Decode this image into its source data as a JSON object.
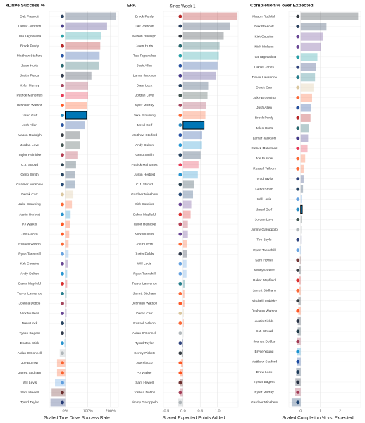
{
  "subtitle": "Since Week 1",
  "highlight": "Jared Goff",
  "player_colors": {
    "Dak Prescott": "#041E42",
    "Lamar Jackson": "#241773",
    "Tua Tagovailoa": "#008E97",
    "Brock Purdy": "#AA0000",
    "Matthew Stafford": "#003594",
    "Jalen Hurts": "#004C54",
    "Justin Fields": "#0B162A",
    "Kyler Murray": "#97233F",
    "Patrick Mahomes": "#E31837",
    "Deshaun Watson": "#FF3C00",
    "Jared Goff": "#0076B6",
    "Josh Allen": "#00338D",
    "Mason Rudolph": "#101820",
    "Jordan Love": "#203731",
    "Taylor Heinicke": "#A71930",
    "C.J. Stroud": "#03202F",
    "Geno Smith": "#002244",
    "Gardner Minshew": "#002C5F",
    "Derek Carr": "#D3BC8D",
    "Jake Browning": "#FB4F14",
    "Justin Herbert": "#0080C6",
    "PJ Walker": "#FF3C00",
    "Joe Flacco": "#FF3C00",
    "Russell Wilson": "#FB4F14",
    "Ryan Tannehill": "#4B92DB",
    "Kirk Cousins": "#4F2683",
    "Andy Dalton": "#0085CA",
    "Baker Mayfield": "#D50A0A",
    "Trevor Lawrence": "#006778",
    "Joshua Dobbs": "#97233F",
    "Nick Mullens": "#4F2683",
    "Drew Lock": "#002244",
    "Tyson Bagent": "#0B162A",
    "Easton Stick": "#0080C6",
    "Aidan O'Connell": "#A5ACAF",
    "Joe Burrow": "#FB4F14",
    "Jarrett Stidham": "#FB4F14",
    "Will Levis": "#4B92DB",
    "Sam Howell": "#5A1414",
    "Tyrod Taylor": "#0B2265",
    "Kenny Pickett": "#101820",
    "Jimmy Garoppolo": "#A5ACAF",
    "Daniel Jones": "#0B2265",
    "Tim Boyle": "#0B2265",
    "Mitchell Trubisky": "#101820",
    "Bryce Young": "#0085CA"
  },
  "chart_data": [
    {
      "type": "bar",
      "orientation": "horizontal",
      "title": "xDrive Success %",
      "x_label": "Scaled True Drive Success Rate",
      "categories": [
        "Dak Prescott",
        "Lamar Jackson",
        "Tua Tagovailoa",
        "Brock Purdy",
        "Matthew Stafford",
        "Jalen Hurts",
        "Justin Fields",
        "Kyler Murray",
        "Patrick Mahomes",
        "Deshaun Watson",
        "Jared Goff",
        "Josh Allen",
        "Mason Rudolph",
        "Jordan Love",
        "Taylor Heinicke",
        "C.J. Stroud",
        "Geno Smith",
        "Gardner Minshew",
        "Derek Carr",
        "Jake Browning",
        "Justin Herbert",
        "PJ Walker",
        "Joe Flacco",
        "Russell Wilson",
        "Ryan Tannehill",
        "Kirk Cousins",
        "Andy Dalton",
        "Baker Mayfield",
        "Trevor Lawrence",
        "Joshua Dobbs",
        "Nick Mullens",
        "Drew Lock",
        "Tyson Bagent",
        "Easton Stick",
        "Aidan O'Connell",
        "Joe Burrow",
        "Jarrett Stidham",
        "Will Levis",
        "Sam Howell",
        "Tyrod Taylor"
      ],
      "values": [
        224,
        185,
        160,
        155,
        152,
        149,
        116,
        101,
        101,
        95,
        95,
        87,
        66,
        66,
        54,
        48,
        45,
        45,
        36,
        30,
        24,
        21,
        18,
        15,
        15,
        12,
        9,
        9,
        6,
        6,
        6,
        3,
        3,
        -3,
        -24,
        -36,
        -36,
        -45,
        -60,
        -65
      ],
      "xlim": [
        -70,
        235
      ],
      "xticks": [
        {
          "value": 0,
          "label": "0%"
        },
        {
          "value": 100,
          "label": "100%"
        },
        {
          "value": 200,
          "label": "200%"
        }
      ]
    },
    {
      "type": "bar",
      "orientation": "horizontal",
      "title": "EPA",
      "x_label": "Scaled Expected Points Added",
      "categories": [
        "Brock Purdy",
        "Dak Prescott",
        "Mason Rudolph",
        "Jalen Hurts",
        "Tua Tagovailoa",
        "Josh Allen",
        "Lamar Jackson",
        "Drew Lock",
        "Jordan Love",
        "Kyler Murray",
        "Jake Browning",
        "Jared Goff",
        "Matthew Stafford",
        "Andy Dalton",
        "Geno Smith",
        "Patrick Mahomes",
        "Justin Herbert",
        "C.J. Stroud",
        "Gardner Minshew",
        "Kirk Cousins",
        "Baker Mayfield",
        "Taylor Heinicke",
        "Nick Mullens",
        "Joe Burrow",
        "Justin Fields",
        "Will Levis",
        "Ryan Tannehill",
        "Trevor Lawrence",
        "Jarrett Stidham",
        "Deshaun Watson",
        "Derek Carr",
        "Russell Wilson",
        "Aidan O'Connell",
        "Tyrod Taylor",
        "Kenny Pickett",
        "Joe Flacco",
        "PJ Walker",
        "Sam Howell",
        "Joshua Dobbs",
        "Jimmy Garoppolo"
      ],
      "values": [
        1.57,
        1.37,
        1.18,
        1.06,
        1.04,
        1.0,
        0.96,
        0.73,
        0.71,
        0.67,
        0.65,
        0.61,
        0.55,
        0.53,
        0.51,
        0.45,
        0.43,
        0.31,
        0.29,
        0.24,
        0.22,
        0.14,
        0.14,
        0.12,
        0.12,
        0.1,
        0.1,
        0.06,
        0.04,
        0.04,
        0.02,
        0.02,
        0,
        -0.02,
        -0.04,
        -0.06,
        -0.08,
        -0.08,
        -0.1,
        -0.16
      ],
      "xlim": [
        -0.57,
        1.6
      ],
      "xticks": [
        -0.5,
        {
          "value": 0,
          "label": "0.0"
        },
        0.5,
        {
          "value": 1,
          "label": "1.0"
        }
      ]
    },
    {
      "type": "bar",
      "orientation": "horizontal",
      "title": "Completion % over Expected",
      "x_label": "Scaled Completion % vs. Expected",
      "categories": [
        "Mason Rudolph",
        "Dak Prescott",
        "Kirk Cousins",
        "Nick Mullens",
        "Tua Tagovailoa",
        "Daniel Jones",
        "Trevor Lawrence",
        "Derek Carr",
        "Jake Browning",
        "Josh Allen",
        "Brock Purdy",
        "Jalen Hurts",
        "Lamar Jackson",
        "Patrick Mahomes",
        "Joe Burrow",
        "Russell Wilson",
        "Tyrod Taylor",
        "Geno Smith",
        "Will Levis",
        "Jared Goff",
        "Jordan Love",
        "Jimmy Garoppolo",
        "Tim Boyle",
        "Ryan Tannehill",
        "Sam Howell",
        "Kenny Pickett",
        "Baker Mayfield",
        "Jarrett Stidham",
        "Mitchell Trubisky",
        "Deshaun Watson",
        "Justin Fields",
        "C.J. Stroud",
        "Joshua Dobbs",
        "Bryce Young",
        "Matthew Stafford",
        "Drew Lock",
        "Tyson Bagent",
        "Kyler Murray",
        "Gardner Minshew"
      ],
      "values": [
        2.92,
        1.31,
        1.12,
        1.04,
        0.85,
        0.77,
        0.73,
        0.65,
        0.58,
        0.54,
        0.5,
        0.42,
        0.38,
        0.35,
        0.23,
        0.15,
        0.15,
        0.12,
        0.08,
        0.08,
        0.04,
        0.04,
        0,
        -0.04,
        -0.04,
        -0.08,
        -0.08,
        -0.08,
        -0.12,
        -0.12,
        -0.15,
        -0.15,
        -0.19,
        -0.19,
        -0.19,
        -0.23,
        -0.27,
        -0.31,
        -0.46
      ],
      "xlim": [
        -0.6,
        3.05
      ],
      "xticks": [
        0,
        1,
        2
      ]
    }
  ]
}
